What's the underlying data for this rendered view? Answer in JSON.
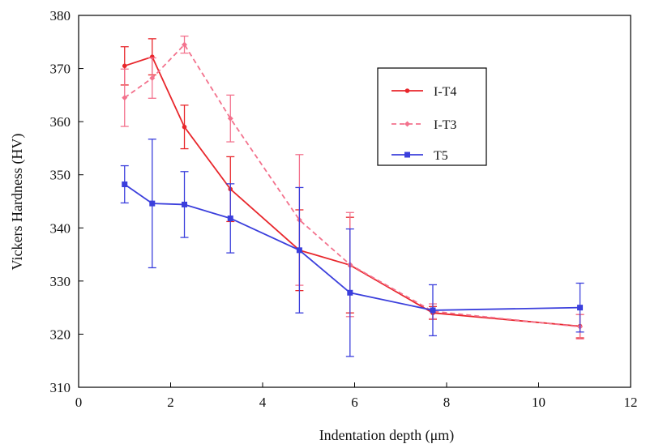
{
  "chart_data": {
    "type": "line",
    "title": "",
    "xlabel": "Indentation depth (μm)",
    "ylabel": "Vickers Hardness (HV)",
    "xlim": [
      0,
      12
    ],
    "ylim": [
      310,
      380
    ],
    "xticks": [
      0,
      2,
      4,
      6,
      8,
      10,
      12
    ],
    "yticks": [
      310,
      320,
      330,
      340,
      350,
      360,
      370,
      380
    ],
    "grid": false,
    "legend_position": "upper-right",
    "series": [
      {
        "name": "I-T4",
        "color": "#e8262b",
        "line_style": "solid",
        "marker": "circle",
        "x": [
          1.0,
          1.6,
          2.3,
          3.3,
          4.8,
          5.9,
          7.7,
          10.9
        ],
        "y": [
          370.5,
          372.2,
          359.0,
          347.3,
          335.8,
          333.0,
          324.0,
          321.5
        ],
        "yerr": [
          3.6,
          3.4,
          4.1,
          6.1,
          7.6,
          9.0,
          1.2,
          2.2
        ]
      },
      {
        "name": "I-T3",
        "color": "#f3728d",
        "line_style": "dashed",
        "marker": "diamond",
        "x": [
          1.0,
          1.6,
          2.3,
          3.3,
          4.8,
          5.9,
          7.7,
          10.9
        ],
        "y": [
          364.5,
          368.2,
          374.5,
          360.6,
          341.5,
          333.1,
          324.3,
          321.4
        ],
        "yerr": [
          5.4,
          3.8,
          1.6,
          4.4,
          12.3,
          9.8,
          1.4,
          2.3
        ]
      },
      {
        "name": "T5",
        "color": "#3b3fdc",
        "line_style": "solid",
        "marker": "square",
        "x": [
          1.0,
          1.6,
          2.3,
          3.3,
          4.8,
          5.9,
          7.7,
          10.9
        ],
        "y": [
          348.2,
          344.6,
          344.4,
          341.8,
          335.8,
          327.8,
          324.5,
          325.0
        ],
        "yerr": [
          3.5,
          12.1,
          6.2,
          6.5,
          11.8,
          12.0,
          4.8,
          4.6
        ]
      }
    ]
  }
}
